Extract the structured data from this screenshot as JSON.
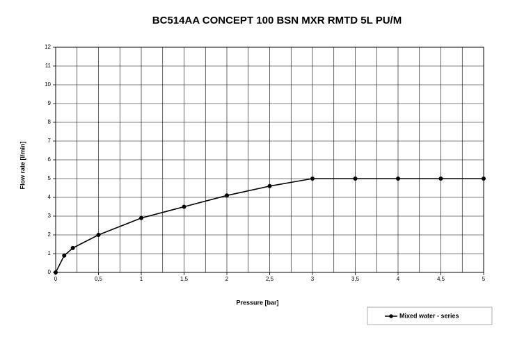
{
  "chart_data": {
    "type": "line",
    "title": "BC514AA  CONCEPT 100 BSN MXR RMTD 5L PU/M",
    "x_label": "Pressure [bar]",
    "y_label": "Flow rate [l/min]",
    "x": [
      0,
      0.1,
      0.2,
      0.5,
      1,
      1.5,
      2,
      2.5,
      3,
      3.5,
      4,
      4.5,
      5
    ],
    "series": [
      {
        "name": "Mixed water - series",
        "color": "#000000",
        "values": [
          0,
          0.9,
          1.3,
          2,
          2.9,
          3.5,
          4.1,
          4.6,
          5,
          5,
          5,
          5,
          5
        ]
      }
    ],
    "xlim": [
      0,
      5
    ],
    "xticks": [
      0,
      {
        "value": 0.5,
        "label": "0,5"
      },
      1,
      {
        "value": 1.5,
        "label": "1,5"
      },
      2,
      {
        "value": 2.5,
        "label": "2,5"
      },
      3,
      {
        "value": 3.5,
        "label": "3,5"
      },
      4,
      {
        "value": 4.5,
        "label": "4,5"
      },
      5
    ],
    "ylim": [
      0,
      12
    ],
    "yticks": [
      0,
      1,
      2,
      3,
      4,
      5,
      6,
      7,
      8,
      9,
      10,
      11,
      12
    ],
    "grid": true,
    "legend": "bottom-right"
  }
}
